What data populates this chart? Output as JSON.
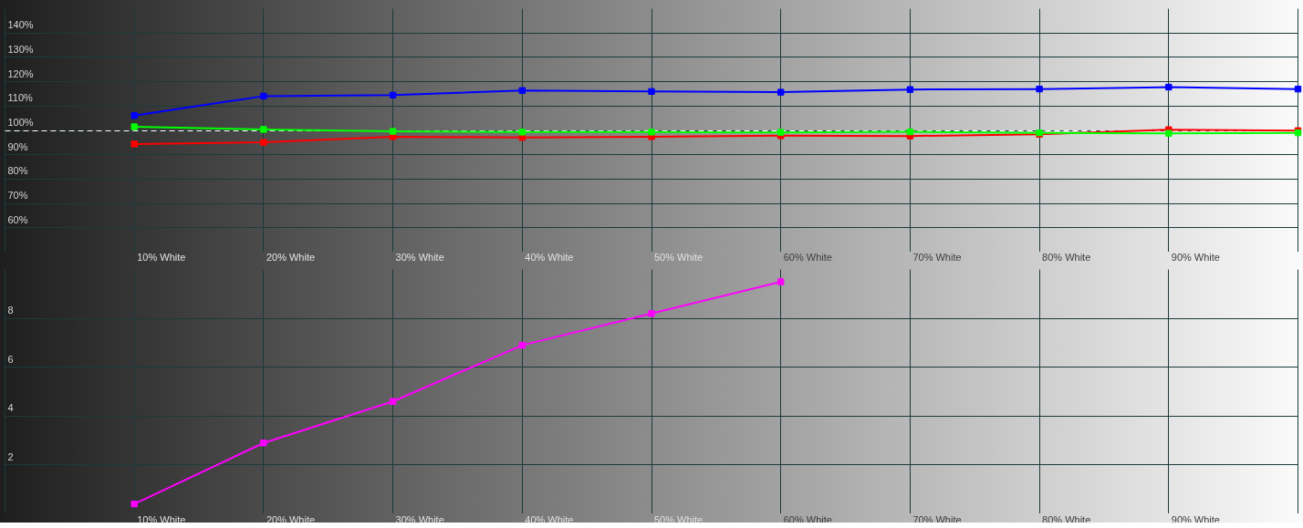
{
  "chart_data": [
    {
      "type": "line",
      "categories": [
        null,
        "10% White",
        "20% White",
        "30% White",
        "40% White",
        "50% White",
        "60% White",
        "70% White",
        "80% White",
        "90% White",
        null
      ],
      "series": [
        {
          "color": "#0000ff",
          "values": [
            null,
            106.1,
            114.1,
            114.5,
            116.4,
            116.0,
            115.7,
            116.8,
            117.0,
            117.8,
            117.0
          ]
        },
        {
          "color": "#ff0000",
          "values": [
            null,
            94.4,
            95.1,
            97.4,
            97.1,
            97.4,
            97.8,
            97.7,
            98.4,
            100.3,
            99.9
          ]
        },
        {
          "color": "#00ff00",
          "values": [
            null,
            101.5,
            100.4,
            99.6,
            99.3,
            99.3,
            99.2,
            99.4,
            99.0,
            98.8,
            99.0
          ]
        }
      ],
      "ylim": [
        50,
        150
      ],
      "yticks": [
        {
          "value": 60,
          "label": "60%"
        },
        {
          "value": 70,
          "label": "70%"
        },
        {
          "value": 80,
          "label": "80%"
        },
        {
          "value": 90,
          "label": "90%"
        },
        {
          "value": 100,
          "label": "100%"
        },
        {
          "value": 110,
          "label": "110%"
        },
        {
          "value": 120,
          "label": "120%"
        },
        {
          "value": 130,
          "label": "130%"
        },
        {
          "value": 140,
          "label": "140%"
        }
      ],
      "grid": true,
      "marker": "square",
      "line_style": "solid",
      "ref_lines": [
        {
          "axis": "y",
          "value": 100,
          "color": "#ffffff",
          "line_style": "dashed"
        }
      ]
    },
    {
      "type": "line",
      "categories": [
        null,
        "10% White",
        "20% White",
        "30% White",
        "40% White",
        "50% White",
        "60% White",
        "70% White",
        "80% White",
        "90% White",
        null
      ],
      "series": [
        {
          "color": "#ff00ff",
          "values": [
            null,
            0.4,
            2.9,
            4.6,
            6.9,
            8.2,
            9.5,
            null,
            null,
            null,
            null
          ]
        }
      ],
      "ylim": [
        0,
        10
      ],
      "yticks": [
        2,
        4,
        6,
        8
      ],
      "grid": true,
      "marker": "square",
      "line_style": "solid"
    }
  ]
}
